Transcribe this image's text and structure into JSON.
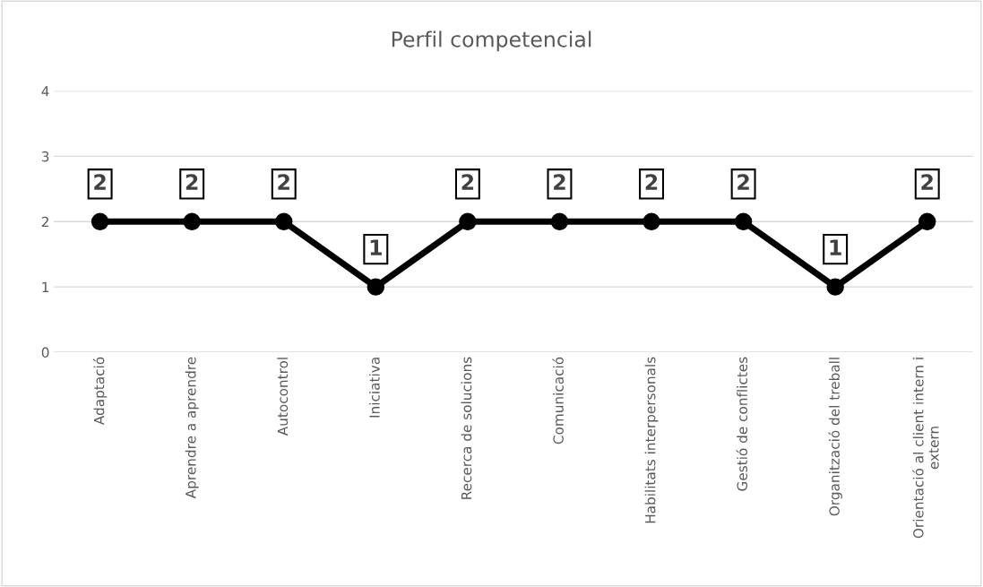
{
  "chart_data": {
    "type": "line",
    "title": "Perfil competencial",
    "categories": [
      "Adaptació",
      "Aprendre a aprendre",
      "Autocontrol",
      "Iniciativa",
      "Recerca de solucions",
      "Comunicació",
      "Habilitats interpersonals",
      "Gestió de conflictes",
      "Organització del treball",
      "Orientació al client intern i extern"
    ],
    "series": [
      {
        "color": "#000000",
        "values": [
          2,
          2,
          2,
          1,
          2,
          2,
          2,
          2,
          1,
          2
        ]
      }
    ],
    "ylim": [
      0,
      4
    ],
    "yticks": [
      0,
      1,
      2,
      3,
      4
    ],
    "grid": "y",
    "marker": "circle",
    "line_style": "solid",
    "data_labels": true,
    "legend": false
  }
}
